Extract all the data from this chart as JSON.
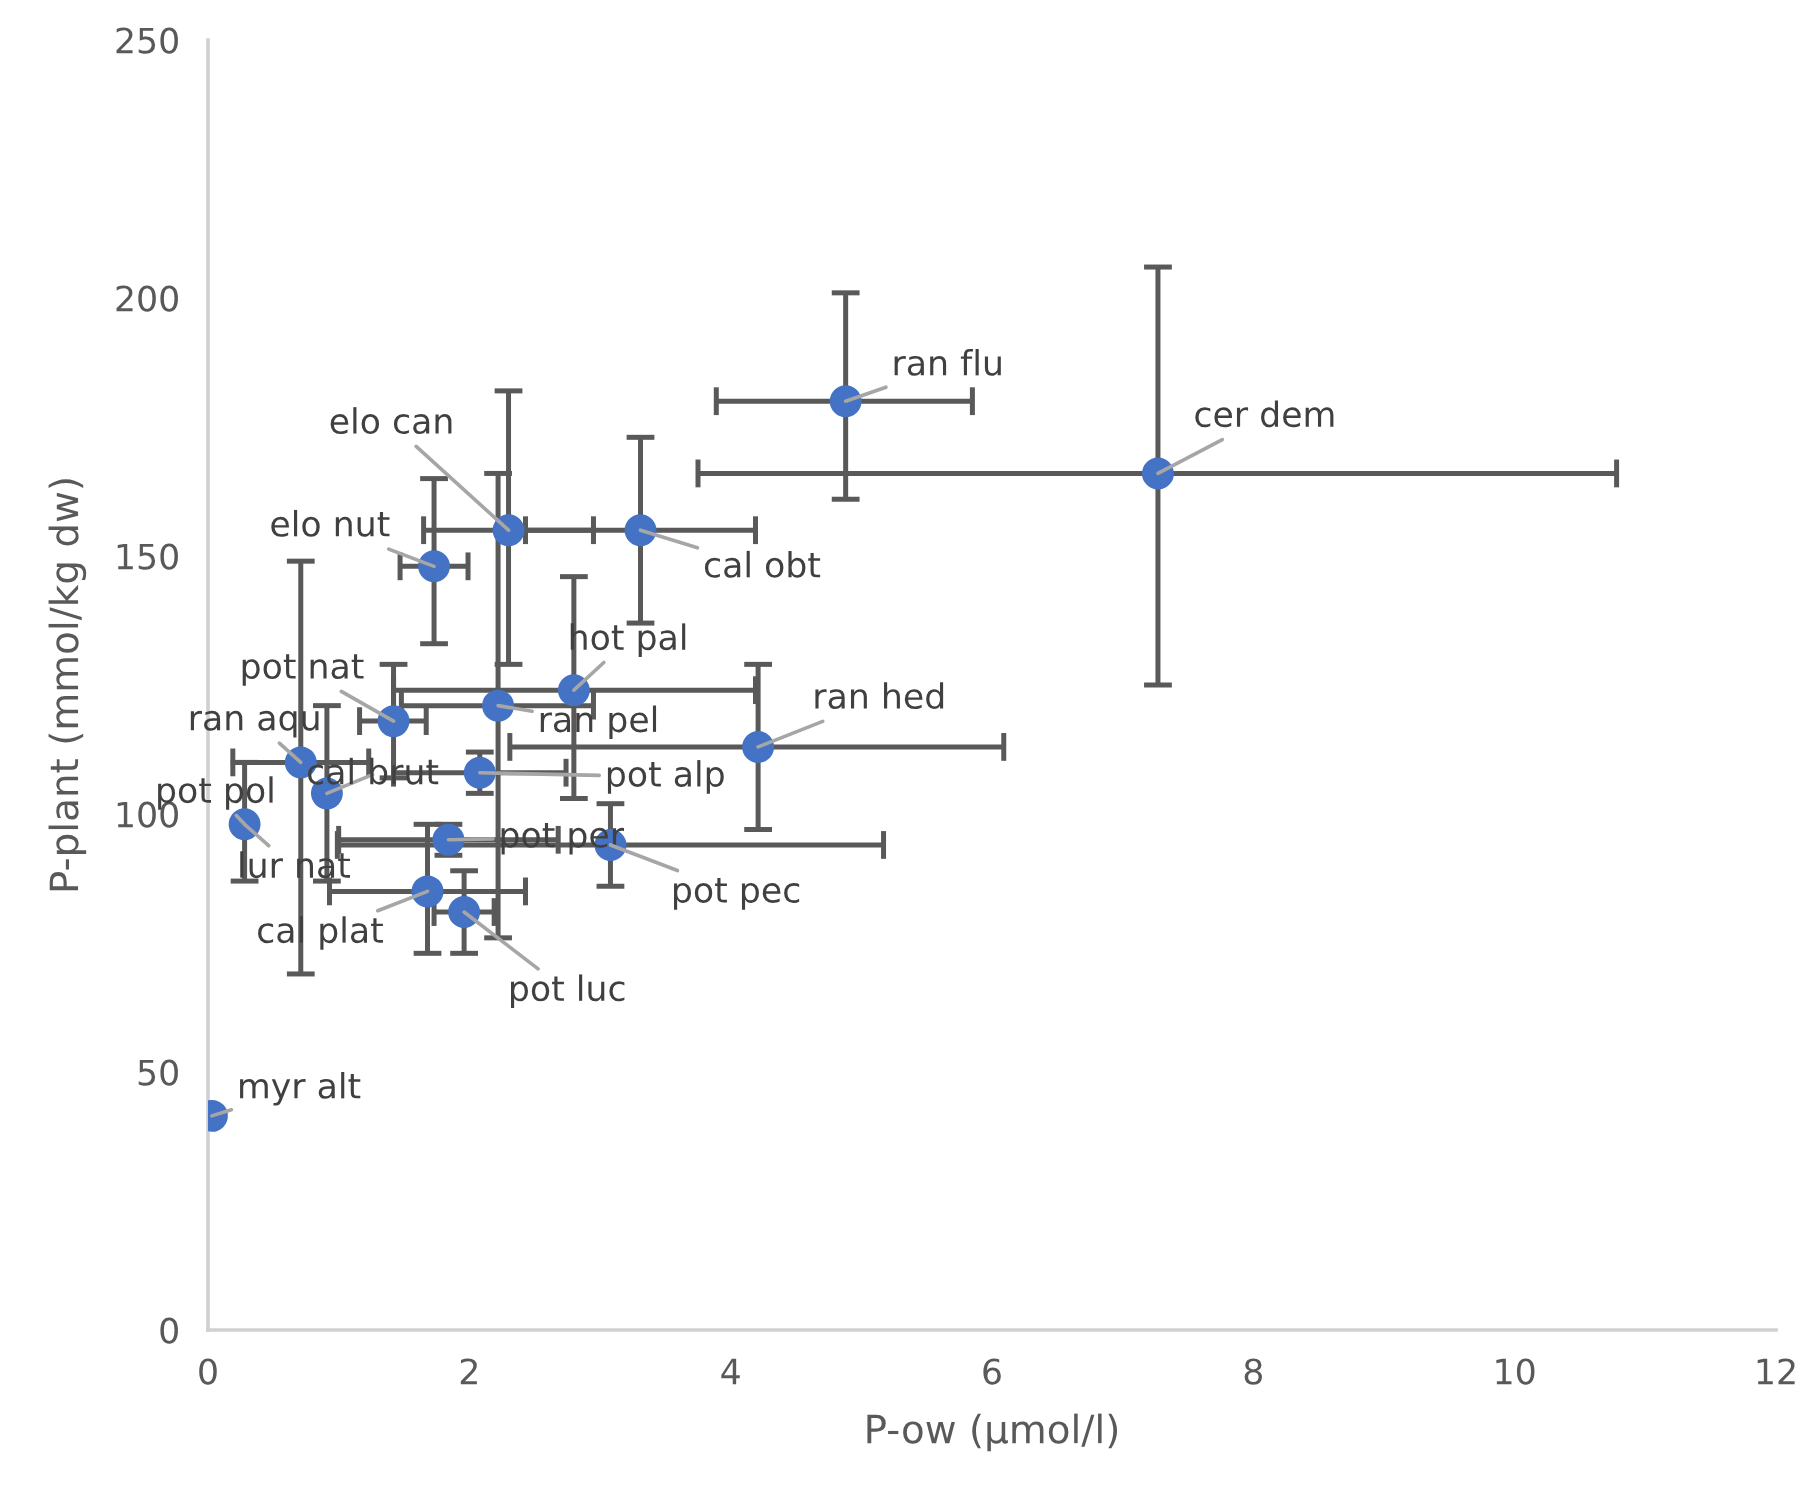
{
  "chart_data": {
    "type": "scatter",
    "xlabel": "P-ow (µmol/l)",
    "ylabel": "P-plant (mmol/kg dw)",
    "xlim": [
      0,
      12
    ],
    "xticks": [
      0,
      2,
      4,
      6,
      8,
      10,
      12
    ],
    "ylim": [
      0,
      250
    ],
    "yticks": [
      0,
      50,
      100,
      150,
      200,
      250
    ],
    "grid": false,
    "legend": false,
    "marker": "circle",
    "series": [
      {
        "color": "#4472c4",
        "x": [
          4.88,
          7.27,
          2.3,
          1.73,
          3.31,
          2.8,
          2.22,
          4.21,
          1.42,
          0.71,
          0.91,
          2.08,
          0.28,
          1.84,
          3.08,
          1.68,
          1.96,
          0.03
        ],
        "values": [
          180,
          166,
          155,
          148,
          155,
          124,
          121,
          113,
          118,
          110,
          104,
          108,
          98,
          95,
          94,
          85,
          81,
          41.5
        ],
        "errors": [
          [
            161,
            201
          ],
          [
            125,
            206
          ],
          [
            129,
            182
          ],
          [
            133,
            165
          ],
          [
            137,
            173
          ],
          [
            103,
            146
          ],
          [
            76,
            166
          ],
          [
            97,
            129
          ],
          [
            107,
            129
          ],
          [
            69,
            149
          ],
          [
            87,
            121
          ],
          [
            104,
            112
          ],
          [
            87,
            110
          ],
          [
            92,
            98
          ],
          [
            86,
            102
          ],
          [
            73,
            98
          ],
          [
            73,
            89
          ],
          null
        ],
        "xerrors": [
          [
            3.89,
            5.85
          ],
          [
            3.75,
            10.78
          ],
          [
            1.65,
            2.95
          ],
          [
            1.47,
            1.99
          ],
          [
            2.43,
            4.19
          ],
          [
            1.42,
            4.19
          ],
          [
            1.48,
            2.95
          ],
          [
            2.31,
            6.09
          ],
          [
            1.16,
            1.67
          ],
          [
            0.19,
            1.23
          ],
          null,
          [
            1.42,
            2.74
          ],
          null,
          [
            1.0,
            2.68
          ],
          [
            0.99,
            5.17
          ],
          [
            0.93,
            2.43
          ],
          [
            1.73,
            2.19
          ],
          null
        ]
      }
    ],
    "annotations": [
      {
        "text": "ran flu",
        "x": 4.88,
        "y": 180
      },
      {
        "text": "cer dem",
        "x": 7.27,
        "y": 166
      },
      {
        "text": "elo can",
        "x": 2.3,
        "y": 155
      },
      {
        "text": "elo nut",
        "x": 1.73,
        "y": 148
      },
      {
        "text": "cal obt",
        "x": 3.31,
        "y": 155
      },
      {
        "text": "hot pal",
        "x": 2.8,
        "y": 124
      },
      {
        "text": "ran pel",
        "x": 2.22,
        "y": 121
      },
      {
        "text": "ran hed",
        "x": 4.21,
        "y": 113
      },
      {
        "text": "pot nat",
        "x": 1.42,
        "y": 118
      },
      {
        "text": "ran aqu",
        "x": 0.71,
        "y": 110
      },
      {
        "text": "cal brut",
        "x": 0.91,
        "y": 104
      },
      {
        "text": "pot alp",
        "x": 2.08,
        "y": 108
      },
      {
        "text": "pot pol",
        "x": 0.28,
        "y": 98
      },
      {
        "text": "pot per",
        "x": 1.84,
        "y": 95
      },
      {
        "text": "pot pec",
        "x": 3.08,
        "y": 94
      },
      {
        "text": "cal plat",
        "x": 1.68,
        "y": 85
      },
      {
        "text": "pot luc",
        "x": 1.96,
        "y": 81
      },
      {
        "text": "myr alt",
        "x": 0.03,
        "y": 41.5
      },
      {
        "text": "lur nat",
        "x": 0.28,
        "y": 98
      }
    ]
  }
}
